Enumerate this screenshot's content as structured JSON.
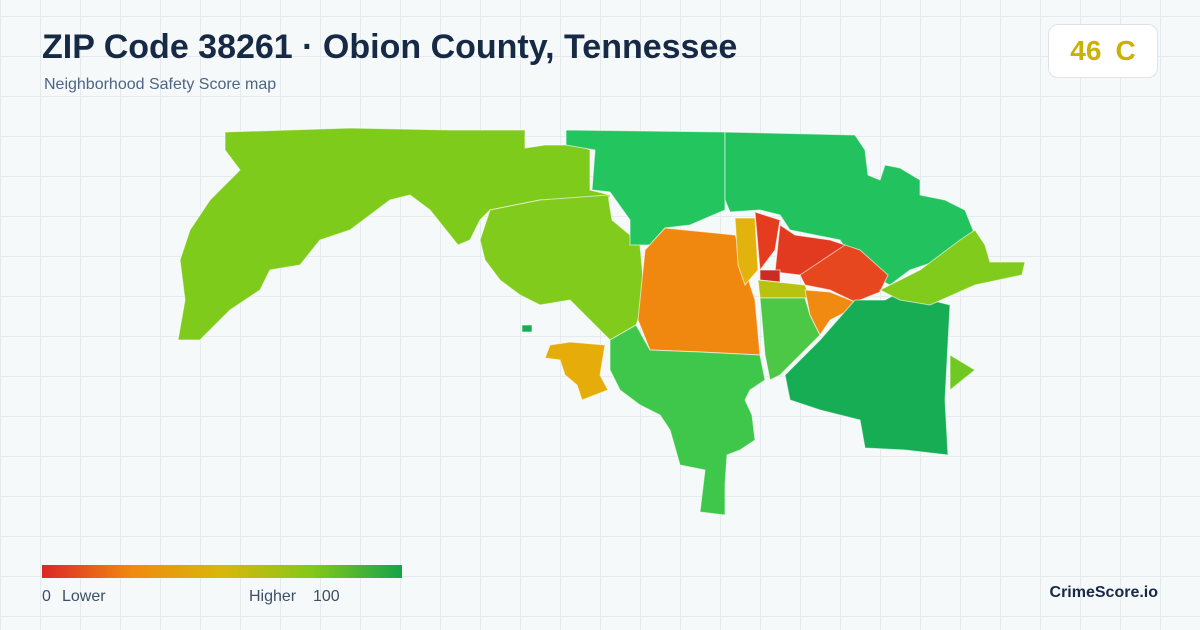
{
  "header": {
    "title": "ZIP Code 38261 · Obion County, Tennessee",
    "subtitle": "Neighborhood Safety Score map"
  },
  "score": {
    "value": 46,
    "grade": "C"
  },
  "legend": {
    "min": 0,
    "min_label": "Lower",
    "max_label": "Higher",
    "max": 100
  },
  "brand": "CrimeScore.io"
}
